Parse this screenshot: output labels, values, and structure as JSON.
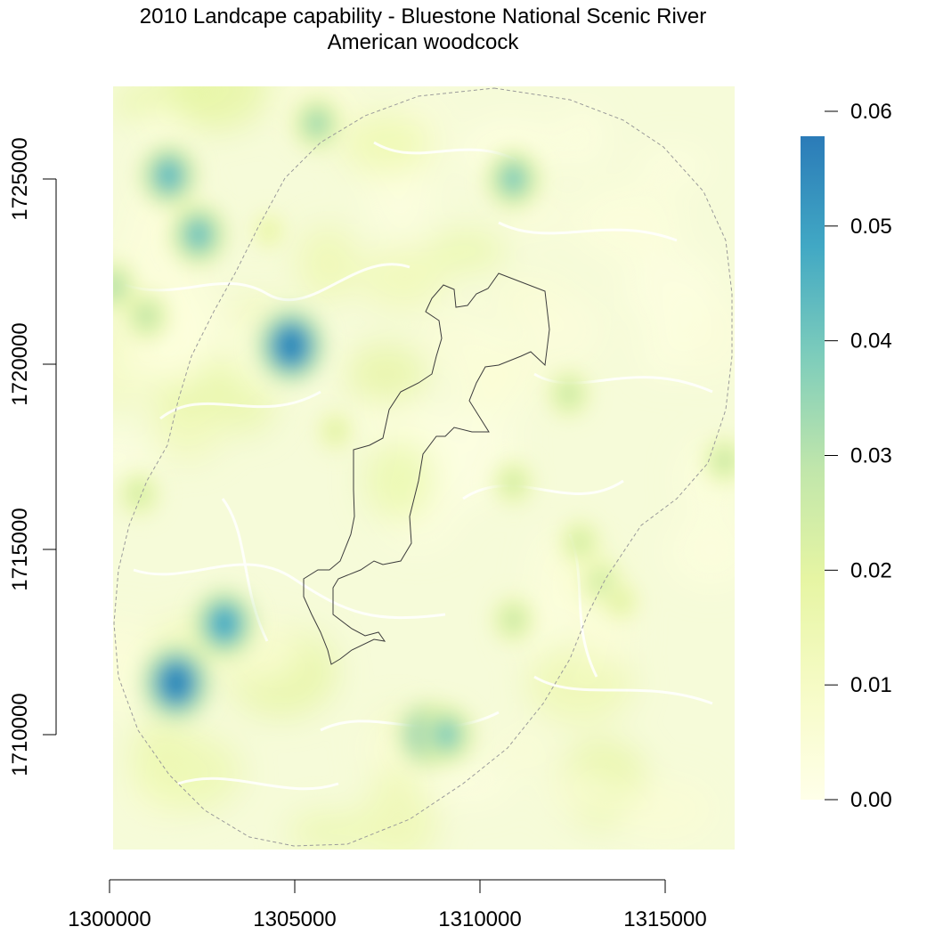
{
  "title": "2010 Landcape capability - Bluestone National Scenic River",
  "subtitle": "American woodcock",
  "chart_data": {
    "type": "heatmap",
    "x_ticks": [
      1300000,
      1305000,
      1310000,
      1315000
    ],
    "y_ticks": [
      1710000,
      1715000,
      1720000,
      1725000
    ],
    "xlim": [
      1300000,
      1316800
    ],
    "ylim": [
      1707000,
      1727700
    ],
    "legend": {
      "placement": "right",
      "ticks": [
        "0.00",
        "0.01",
        "0.02",
        "0.03",
        "0.04",
        "0.05",
        "0.06"
      ],
      "range": [
        0,
        0.06
      ],
      "colors": [
        "#ffffe9",
        "#f6fbc6",
        "#e6f5a3",
        "#c0e6ab",
        "#7ecdbb",
        "#41a8c4",
        "#2b7bb8"
      ]
    },
    "hotspots": [
      {
        "x": 1304900,
        "y": 1720500,
        "value": 0.058
      },
      {
        "x": 1301800,
        "y": 1711400,
        "value": 0.058
      },
      {
        "x": 1303100,
        "y": 1713000,
        "value": 0.05
      },
      {
        "x": 1301600,
        "y": 1725100,
        "value": 0.045
      },
      {
        "x": 1302400,
        "y": 1723500,
        "value": 0.043
      },
      {
        "x": 1308600,
        "y": 1710000,
        "value": 0.047
      },
      {
        "x": 1310900,
        "y": 1725000,
        "value": 0.04
      },
      {
        "x": 1301000,
        "y": 1721300,
        "value": 0.03
      },
      {
        "x": 1300100,
        "y": 1722100,
        "value": 0.032
      },
      {
        "x": 1310900,
        "y": 1713100,
        "value": 0.028
      },
      {
        "x": 1312400,
        "y": 1719200,
        "value": 0.028
      },
      {
        "x": 1313300,
        "y": 1714100,
        "value": 0.027
      },
      {
        "x": 1312700,
        "y": 1715200,
        "value": 0.026
      },
      {
        "x": 1316600,
        "y": 1717400,
        "value": 0.028
      },
      {
        "x": 1300800,
        "y": 1716500,
        "value": 0.026
      },
      {
        "x": 1306100,
        "y": 1718200,
        "value": 0.022
      },
      {
        "x": 1309100,
        "y": 1710000,
        "value": 0.04
      },
      {
        "x": 1304300,
        "y": 1723600,
        "value": 0.02
      },
      {
        "x": 1310900,
        "y": 1716800,
        "value": 0.026
      },
      {
        "x": 1305600,
        "y": 1726500,
        "value": 0.035
      },
      {
        "x": 1313800,
        "y": 1713600,
        "value": 0.022
      }
    ]
  }
}
